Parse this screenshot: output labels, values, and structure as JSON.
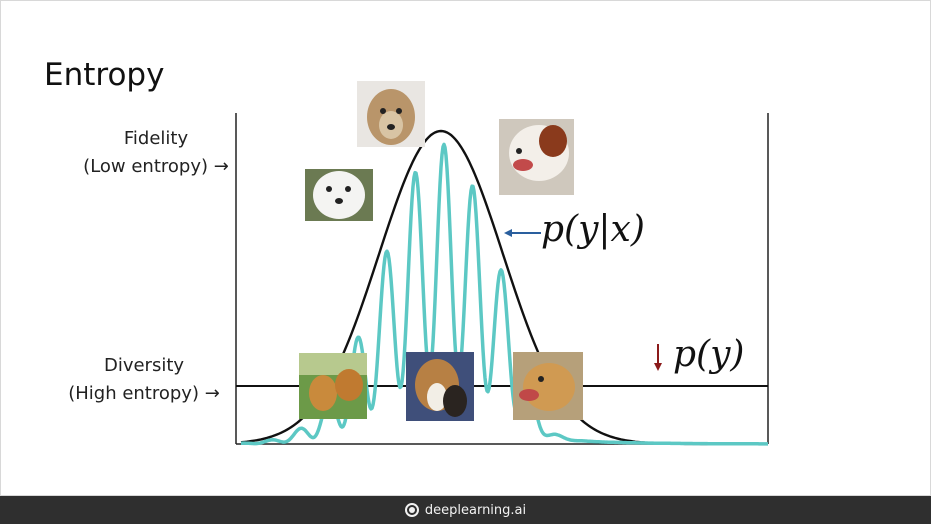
{
  "slide": {
    "title": "Entropy",
    "fidelity_label": "Fidelity",
    "fidelity_sub": "(Low entropy) →",
    "diversity_label": "Diversity",
    "diversity_sub": "(High entropy) →",
    "conditional_label": "p(y|x)",
    "marginal_label": "p(y)"
  },
  "colors": {
    "conditional_curve": "#5cc8c4",
    "marginal_curve": "#111111",
    "conditional_arrow": "#2a5f9e",
    "marginal_arrow": "#8b1a1a"
  },
  "photos": [
    {
      "name": "dog-photo-golden-face-top",
      "icon": "golden-retriever-photo"
    },
    {
      "name": "dog-photo-white-puppy",
      "icon": "white-dog-photo"
    },
    {
      "name": "dog-photo-saint-bernard",
      "icon": "saint-bernard-photo"
    },
    {
      "name": "dog-photo-two-goldens",
      "icon": "golden-retrievers-photo"
    },
    {
      "name": "dog-photo-collie",
      "icon": "collie-photo"
    },
    {
      "name": "dog-photo-golden-side",
      "icon": "golden-retriever-side-photo"
    }
  ],
  "footer": {
    "brand": "deeplearning.ai",
    "icon": "deeplearning-logo-icon"
  }
}
